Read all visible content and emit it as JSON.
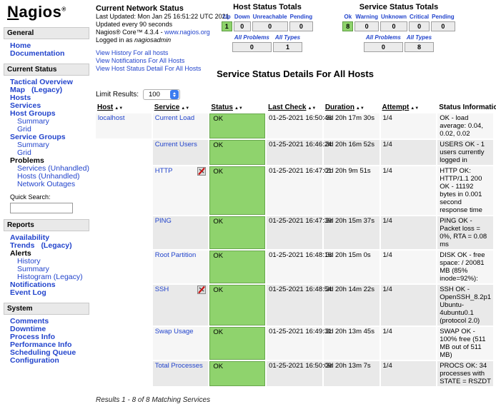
{
  "brand": {
    "n": "N",
    "rest": "agios",
    "registered_mark": "®"
  },
  "colors": {
    "link_blue": "#2244cc",
    "ok_green": "#8fd36d",
    "ok_green_border": "#69a74e",
    "box_gray": "#ebebeb",
    "row_light": "#f6f6f6",
    "row_dark": "#e9e9e9"
  },
  "icons": {
    "sort_ascending": "▲",
    "sort_descending": "▼"
  },
  "sidebar": {
    "quick_search_label": "Quick Search:",
    "sections": [
      {
        "title": "General",
        "items": [
          {
            "label": "Home",
            "bold": true
          },
          {
            "label": "Documentation",
            "bold": true
          }
        ]
      },
      {
        "title": "Current Status",
        "quick_search": true,
        "items": [
          {
            "label": "Tactical Overview",
            "bold": true
          },
          {
            "label": "Map",
            "suffix": "(Legacy)",
            "bold": true
          },
          {
            "label": "Hosts",
            "bold": true
          },
          {
            "label": "Services",
            "bold": true
          },
          {
            "label": "Host Groups",
            "bold": true
          },
          {
            "label": "Summary",
            "indent": true
          },
          {
            "label": "Grid",
            "indent": true
          },
          {
            "label": "Service Groups",
            "bold": true
          },
          {
            "label": "Summary",
            "indent": true
          },
          {
            "label": "Grid",
            "indent": true
          },
          {
            "label": "Problems",
            "static": true
          },
          {
            "label": "Services (Unhandled)",
            "indent": true
          },
          {
            "label": "Hosts (Unhandled)",
            "indent": true
          },
          {
            "label": "Network Outages",
            "indent": true
          }
        ]
      },
      {
        "title": "Reports",
        "items": [
          {
            "label": "Availability",
            "bold": true
          },
          {
            "label": "Trends",
            "suffix": "(Legacy)",
            "bold": true
          },
          {
            "label": "Alerts",
            "static": true
          },
          {
            "label": "History",
            "indent": true
          },
          {
            "label": "Summary",
            "indent": true
          },
          {
            "label": "Histogram (Legacy)",
            "indent": true
          },
          {
            "label": "Notifications",
            "bold": true
          },
          {
            "label": "Event Log",
            "bold": true
          }
        ]
      },
      {
        "title": "System",
        "items": [
          {
            "label": "Comments",
            "bold": true
          },
          {
            "label": "Downtime",
            "bold": true
          },
          {
            "label": "Process Info",
            "bold": true
          },
          {
            "label": "Performance Info",
            "bold": true
          },
          {
            "label": "Scheduling Queue",
            "bold": true
          },
          {
            "label": "Configuration",
            "bold": true
          }
        ]
      }
    ]
  },
  "header": {
    "info": {
      "title": "Current Network Status",
      "last_updated": "Last Updated: Mon Jan 25 16:51:22 UTC 2021",
      "update_interval": "Updated every 90 seconds",
      "version_prefix": "Nagios® Core™ 4.3.4 - ",
      "version_link": "www.nagios.org",
      "logged_in_prefix": "Logged in as ",
      "logged_in_user": "nagiosadmin",
      "links": [
        "View History For all hosts",
        "View Notifications For All Hosts",
        "View Host Status Detail For All Hosts"
      ]
    },
    "host_totals": {
      "title": "Host Status Totals",
      "columns": [
        "Up",
        "Down",
        "Unreachable",
        "Pending"
      ],
      "values": [
        "1",
        "0",
        "0",
        "0"
      ],
      "highlight_index": 0,
      "summary_columns": [
        "All Problems",
        "All Types"
      ],
      "summary_values": [
        "0",
        "1"
      ]
    },
    "service_totals": {
      "title": "Service Status Totals",
      "columns": [
        "Ok",
        "Warning",
        "Unknown",
        "Critical",
        "Pending"
      ],
      "values": [
        "8",
        "0",
        "0",
        "0",
        "0"
      ],
      "highlight_index": 0,
      "summary_columns": [
        "All Problems",
        "All Types"
      ],
      "summary_values": [
        "0",
        "8"
      ]
    }
  },
  "main": {
    "page_title": "Service Status Details For All Hosts",
    "limit_label": "Limit Results:",
    "limit_value": "100",
    "table": {
      "headers": [
        {
          "label": "Host",
          "sortable": true
        },
        {
          "label": "Service",
          "sortable": true
        },
        {
          "label": "Status",
          "sortable": true
        },
        {
          "label": "Last Check",
          "sortable": true
        },
        {
          "label": "Duration",
          "sortable": true
        },
        {
          "label": "Attempt",
          "sortable": true
        },
        {
          "label": "Status Information",
          "sortable": false
        }
      ],
      "rows": [
        {
          "host": "localhost",
          "service": "Current Load",
          "icon": null,
          "status": "OK",
          "last_check": "01-25-2021 16:50:46",
          "duration": "3d 20h 17m 30s",
          "attempt": "1/4",
          "info": "OK - load average: 0.04, 0.02, 0.02"
        },
        {
          "host": "",
          "service": "Current Users",
          "icon": null,
          "status": "OK",
          "last_check": "01-25-2021 16:46:24",
          "duration": "3d 20h 16m 52s",
          "attempt": "1/4",
          "info": "USERS OK - 1 users currently logged in"
        },
        {
          "host": "",
          "service": "HTTP",
          "icon": "notifications-disabled-icon",
          "status": "OK",
          "last_check": "01-25-2021 16:47:01",
          "duration": "2d 20h 9m 51s",
          "attempt": "1/4",
          "info": "HTTP OK: HTTP/1.1 200 OK - 11192 bytes in 0.001 second response time"
        },
        {
          "host": "",
          "service": "PING",
          "icon": null,
          "status": "OK",
          "last_check": "01-25-2021 16:47:39",
          "duration": "3d 20h 15m 37s",
          "attempt": "1/4",
          "info": "PING OK - Packet loss = 0%, RTA = 0.08 ms"
        },
        {
          "host": "",
          "service": "Root Partition",
          "icon": null,
          "status": "OK",
          "last_check": "01-25-2021 16:48:16",
          "duration": "3d 20h 15m 0s",
          "attempt": "1/4",
          "info": "DISK OK - free space: / 20081 MB (85% inode=92%):"
        },
        {
          "host": "",
          "service": "SSH",
          "icon": "notifications-disabled-icon",
          "status": "OK",
          "last_check": "01-25-2021 16:48:54",
          "duration": "3d 20h 14m 22s",
          "attempt": "1/4",
          "info": "SSH OK - OpenSSH_8.2p1 Ubuntu-4ubuntu0.1 (protocol 2.0)"
        },
        {
          "host": "",
          "service": "Swap Usage",
          "icon": null,
          "status": "OK",
          "last_check": "01-25-2021 16:49:31",
          "duration": "3d 20h 13m 45s",
          "attempt": "1/4",
          "info": "SWAP OK - 100% free (511 MB out of 511 MB)"
        },
        {
          "host": "",
          "service": "Total Processes",
          "icon": null,
          "status": "OK",
          "last_check": "01-25-2021 16:50:09",
          "duration": "3d 20h 13m 7s",
          "attempt": "1/4",
          "info": "PROCS OK: 34 processes with STATE = RSZDT"
        }
      ]
    },
    "results_text": "Results 1 - 8 of 8 Matching Services"
  }
}
